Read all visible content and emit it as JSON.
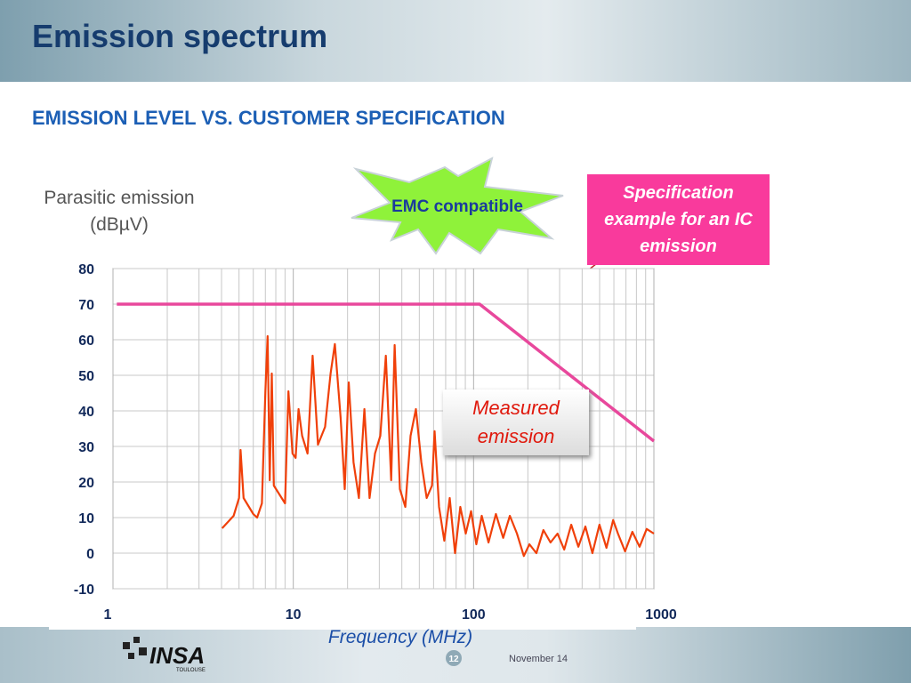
{
  "header": {
    "title": "Emission spectrum",
    "subtitle": "EMISSION LEVEL VS. CUSTOMER SPECIFICATION"
  },
  "chart_data": {
    "type": "line",
    "ylabel": "Parasitic emission (dBµV)",
    "xlabel": "Frequency (MHz)",
    "annotation": "EMC compatible",
    "xscale": "log",
    "grid": true,
    "xlim": [
      1,
      1000
    ],
    "xticks": [
      1,
      10,
      100,
      1000
    ],
    "ylim": [
      -10,
      80
    ],
    "yticks": [
      -10,
      0,
      10,
      20,
      30,
      40,
      50,
      60,
      70,
      80
    ],
    "series": [
      {
        "name": "Specification example for an IC emission",
        "color": "#e8489c",
        "x": [
          1.05,
          108,
          1000
        ],
        "values": [
          70,
          70,
          31.5
        ]
      },
      {
        "name": "Measured emission",
        "color": "#f0400a",
        "x": [
          4.03,
          4.67,
          5.0,
          5.1,
          5.3,
          6.0,
          6.3,
          6.7,
          7.0,
          7.2,
          7.4,
          7.6,
          7.8,
          9.0,
          9.4,
          9.9,
          10.3,
          10.7,
          11.2,
          12.0,
          12.8,
          13.7,
          15.0,
          16.1,
          17.0,
          18.3,
          19.3,
          20.3,
          21.6,
          23.1,
          24.8,
          26.5,
          28.4,
          30.4,
          32.6,
          34.9,
          36.5,
          39.0,
          41.8,
          44.7,
          47.9,
          51.3,
          54.9,
          58.8,
          60.8,
          64.3,
          68.8,
          73.7,
          78.9,
          84.4,
          90.4,
          96.8,
          103.6,
          111,
          121,
          133,
          146,
          159,
          174,
          190,
          204,
          223,
          244,
          267,
          292,
          318,
          348,
          381,
          417,
          456,
          499,
          546,
          594,
          632,
          692,
          760,
          833,
          912,
          1000
        ],
        "values": [
          7,
          10.5,
          15.5,
          29,
          15.5,
          11,
          10,
          14,
          45.5,
          61,
          20.5,
          50.5,
          19,
          14,
          45.5,
          28,
          26.8,
          40.5,
          33,
          28,
          55.5,
          30.5,
          35.5,
          50.5,
          58.8,
          38,
          18,
          48,
          25.5,
          15.5,
          40.5,
          15.5,
          28,
          33,
          55.5,
          20.5,
          58.5,
          18,
          13,
          33,
          40.5,
          25.5,
          15.5,
          19,
          34.3,
          13,
          3.5,
          15.5,
          0,
          13,
          5.5,
          11.8,
          2.5,
          10.5,
          3,
          11,
          4.3,
          10.5,
          5.5,
          -0.8,
          2.5,
          0,
          6.5,
          3,
          5.5,
          1,
          8,
          1.8,
          7.5,
          0,
          8,
          1.5,
          9.3,
          5.5,
          0.5,
          6,
          1.8,
          6.8,
          5.5
        ]
      }
    ]
  },
  "footer": {
    "logo": "INSA",
    "logo_sub": "TOULOUSE",
    "page": "12",
    "date": "November 14"
  }
}
